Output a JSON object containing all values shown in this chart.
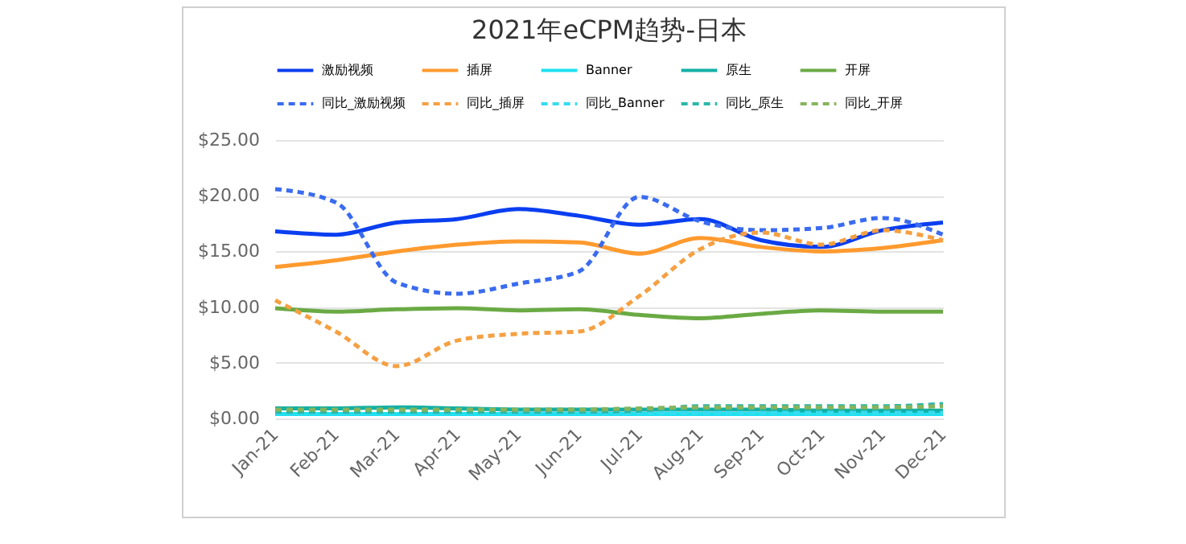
{
  "chart_data": {
    "type": "line",
    "title": "2021年eCPM趋势-日本",
    "categories": [
      "Jan-21",
      "Feb-21",
      "Mar-21",
      "Apr-21",
      "May-21",
      "Jun-21",
      "Jul-21",
      "Aug-21",
      "Sep-21",
      "Oct-21",
      "Nov-21",
      "Dec-21"
    ],
    "series": [
      {
        "name": "激励视频",
        "color": "#0a3ef0",
        "line_style": "solid",
        "values": [
          16.8,
          16.5,
          17.6,
          17.9,
          18.8,
          18.2,
          17.4,
          17.9,
          16.0,
          15.4,
          16.9,
          17.6
        ]
      },
      {
        "name": "插屏",
        "color": "#ff9a2e",
        "line_style": "solid",
        "values": [
          13.6,
          14.2,
          15.0,
          15.6,
          15.9,
          15.8,
          14.8,
          16.2,
          15.4,
          15.0,
          15.3,
          16.0
        ]
      },
      {
        "name": "Banner",
        "color": "#1ee0f0",
        "line_style": "solid",
        "values": [
          0.4,
          0.4,
          0.4,
          0.4,
          0.4,
          0.4,
          0.4,
          0.4,
          0.4,
          0.4,
          0.4,
          0.4
        ]
      },
      {
        "name": "原生",
        "color": "#13b0a5",
        "line_style": "solid",
        "values": [
          0.9,
          0.9,
          1.0,
          0.9,
          0.8,
          0.8,
          0.8,
          0.8,
          0.8,
          0.7,
          0.7,
          0.7
        ]
      },
      {
        "name": "开屏",
        "color": "#6aaa44",
        "line_style": "solid",
        "values": [
          9.9,
          9.6,
          9.8,
          9.9,
          9.7,
          9.8,
          9.3,
          9.0,
          9.4,
          9.7,
          9.6,
          9.6
        ]
      },
      {
        "name": "同比_激励视频",
        "color": "#3a6bf0",
        "line_style": "dashed",
        "values": [
          20.6,
          19.4,
          12.2,
          11.2,
          12.1,
          13.2,
          19.9,
          17.7,
          16.9,
          17.1,
          18.0,
          16.5
        ]
      },
      {
        "name": "同比_插屏",
        "color": "#f5a042",
        "line_style": "dashed",
        "values": [
          10.6,
          7.8,
          4.7,
          7.0,
          7.6,
          7.8,
          11.0,
          15.2,
          16.7,
          15.6,
          16.9,
          16.0
        ]
      },
      {
        "name": "同比_Banner",
        "color": "#36dcf0",
        "line_style": "dashed",
        "values": [
          0.5,
          0.5,
          0.5,
          0.5,
          0.5,
          0.5,
          0.5,
          0.5,
          0.5,
          0.5,
          0.5,
          0.5
        ]
      },
      {
        "name": "同比_原生",
        "color": "#2bb7aa",
        "line_style": "dashed",
        "values": [
          0.6,
          0.6,
          0.6,
          0.6,
          0.6,
          0.6,
          0.7,
          1.1,
          1.1,
          1.1,
          1.1,
          1.3
        ]
      },
      {
        "name": "同比_开屏",
        "color": "#86b45c",
        "line_style": "dashed",
        "values": [
          0.8,
          0.8,
          0.8,
          0.8,
          0.8,
          0.8,
          0.9,
          1.0,
          1.0,
          1.0,
          1.0,
          1.1
        ]
      }
    ],
    "ylim": [
      0,
      25
    ],
    "yticks": [
      {
        "value": 0,
        "label": "$0.00"
      },
      {
        "value": 5,
        "label": "$5.00"
      },
      {
        "value": 10,
        "label": "$10.00"
      },
      {
        "value": 15,
        "label": "$15.00"
      },
      {
        "value": 20,
        "label": "$20.00"
      },
      {
        "value": 25,
        "label": "$25.00"
      }
    ],
    "grid": true,
    "legend": "top"
  }
}
